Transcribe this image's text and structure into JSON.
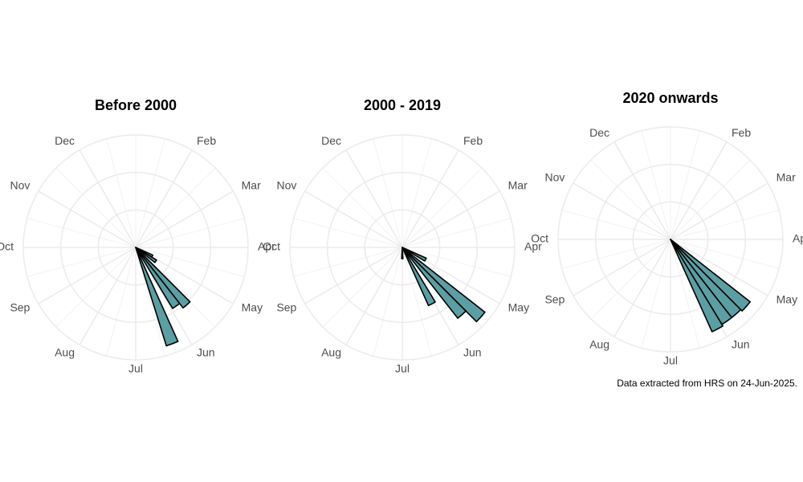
{
  "chart_data": [
    {
      "type": "rose",
      "title": "Before 2000",
      "color": "#5b9ea3",
      "x": [
        17,
        18,
        20,
        21,
        23
      ],
      "values": [
        1,
        1.3,
        4.1,
        3.8,
        5.5
      ],
      "xlim": [
        0,
        52
      ],
      "xticks": [
        {
          "value": 4.333,
          "label": "Feb"
        },
        {
          "value": 8.667,
          "label": "Mar"
        },
        {
          "value": 13,
          "label": "Apr"
        },
        {
          "value": 17.333,
          "label": "May"
        },
        {
          "value": 21.667,
          "label": "Jun"
        },
        {
          "value": 26,
          "label": "Jul"
        },
        {
          "value": 30.333,
          "label": "Aug"
        },
        {
          "value": 34.667,
          "label": "Sep"
        },
        {
          "value": 39,
          "label": "Oct"
        },
        {
          "value": 43.333,
          "label": "Nov"
        },
        {
          "value": 47.667,
          "label": "Dec"
        }
      ],
      "ylim": [
        0,
        6
      ],
      "yticks": [
        2,
        4,
        6
      ],
      "grid": true
    },
    {
      "type": "rose",
      "title": "2000 - 2019",
      "color": "#5b9ea3",
      "x": [
        17,
        19,
        20,
        22,
        26
      ],
      "values": [
        1.4,
        5.6,
        4.8,
        3.4,
        0.6
      ],
      "xlim": [
        0,
        52
      ],
      "xticks": [
        {
          "value": 4.333,
          "label": "Feb"
        },
        {
          "value": 8.667,
          "label": "Mar"
        },
        {
          "value": 13,
          "label": "Apr"
        },
        {
          "value": 17.333,
          "label": "May"
        },
        {
          "value": 21.667,
          "label": "Jun"
        },
        {
          "value": 26,
          "label": "Jul"
        },
        {
          "value": 30.333,
          "label": "Aug"
        },
        {
          "value": 34.667,
          "label": "Sep"
        },
        {
          "value": 39,
          "label": "Oct"
        },
        {
          "value": 43.333,
          "label": "Nov"
        },
        {
          "value": 47.667,
          "label": "Dec"
        }
      ],
      "ylim": [
        0,
        6
      ],
      "yticks": [
        2,
        4,
        6
      ],
      "grid": true
    },
    {
      "type": "rose",
      "title": "2020 onwards",
      "color": "#5b9ea3",
      "x": [
        19,
        20,
        21,
        22
      ],
      "values": [
        5.4,
        5.3,
        5.3,
        5.4
      ],
      "xlim": [
        0,
        52
      ],
      "xticks": [
        {
          "value": 4.333,
          "label": "Feb"
        },
        {
          "value": 8.667,
          "label": "Mar"
        },
        {
          "value": 13,
          "label": "Apr"
        },
        {
          "value": 17.333,
          "label": "May"
        },
        {
          "value": 21.667,
          "label": "Jun"
        },
        {
          "value": 26,
          "label": "Jul"
        },
        {
          "value": 30.333,
          "label": "Aug"
        },
        {
          "value": 34.667,
          "label": "Sep"
        },
        {
          "value": 39,
          "label": "Oct"
        },
        {
          "value": 43.333,
          "label": "Nov"
        },
        {
          "value": 47.667,
          "label": "Dec"
        }
      ],
      "ylim": [
        0,
        6
      ],
      "yticks": [
        2,
        4,
        6
      ],
      "grid": true
    }
  ],
  "caption": "Data extracted from HRS on 24-Jun-2025."
}
